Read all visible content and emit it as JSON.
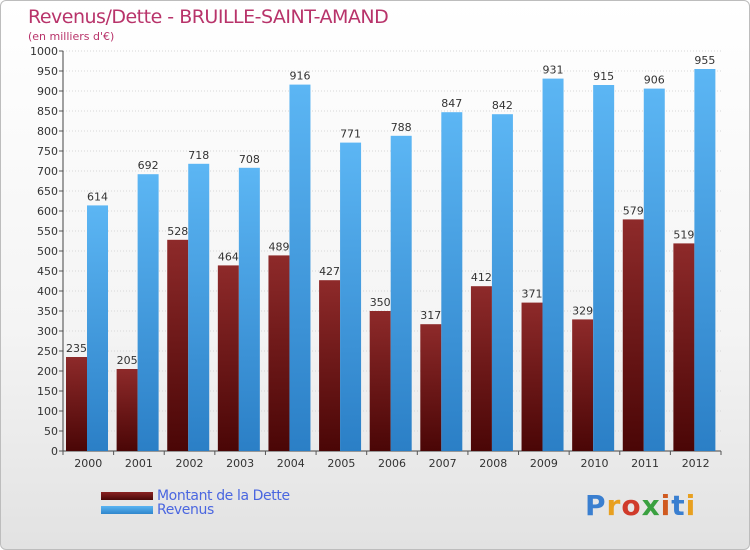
{
  "chart_data": {
    "type": "bar",
    "title": "Revenus/Dette - BRUILLE-SAINT-AMAND",
    "subtitle": "(en milliers d'€)",
    "categories": [
      "2000",
      "2001",
      "2002",
      "2003",
      "2004",
      "2005",
      "2006",
      "2007",
      "2008",
      "2009",
      "2010",
      "2011",
      "2012"
    ],
    "series": [
      {
        "name": "Montant de la Dette",
        "color": "#7a1a1a",
        "values": [
          235,
          205,
          528,
          464,
          489,
          427,
          350,
          317,
          412,
          371,
          329,
          579,
          519
        ]
      },
      {
        "name": "Revenus",
        "color": "#4aa3e6",
        "values": [
          614,
          692,
          718,
          708,
          916,
          771,
          788,
          847,
          842,
          931,
          915,
          906,
          955
        ]
      }
    ],
    "ylim": [
      0,
      1000
    ],
    "ytick_step": 50,
    "grid": true,
    "legend_position": "bottom-left"
  },
  "logo": {
    "text": "Proxiti",
    "colors": [
      "#3a7fd0",
      "#e8a020",
      "#d03a2a",
      "#3aa040",
      "#d05a20",
      "#3a7fd0",
      "#e8a020"
    ]
  }
}
